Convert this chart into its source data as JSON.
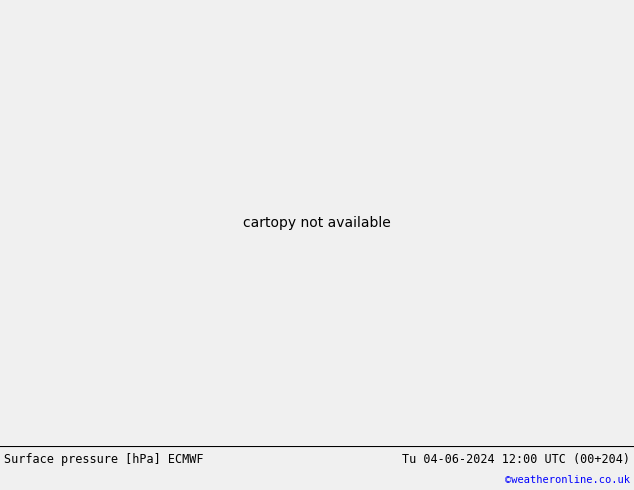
{
  "title_left": "Surface pressure [hPa] ECMWF",
  "title_right": "Tu 04-06-2024 12:00 UTC (00+204)",
  "credit": "©weatheronline.co.uk",
  "ocean_color": "#d8d8d8",
  "land_color": "#c8e8b0",
  "land_gray_color": "#b8b8b8",
  "bottom_bar_color": "#f0f0f0",
  "fig_width": 6.34,
  "fig_height": 4.9,
  "dpi": 100,
  "map_extent": [
    -28,
    42,
    27,
    72
  ]
}
